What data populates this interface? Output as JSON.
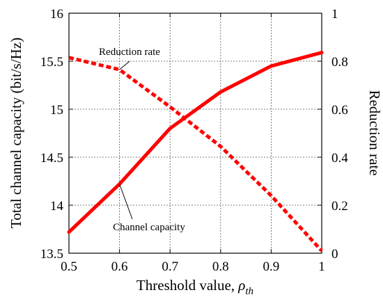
{
  "chart_data": {
    "type": "line",
    "title": "",
    "xlabel": "Threshold value, ",
    "xlabel_symbol": "ρ",
    "xlabel_subscript": "th",
    "ylabel_left": "Total channel capacity (bit/s/Hz)",
    "ylabel_right": "Reduction rate",
    "xlim": [
      0.5,
      1.0
    ],
    "ylim_left": [
      13.5,
      16
    ],
    "ylim_right": [
      0,
      1
    ],
    "grid": true,
    "x_ticks": [
      "0.5",
      "0.6",
      "0.7",
      "0.8",
      "0.9",
      "1"
    ],
    "y_left_ticks": [
      "13.5",
      "14",
      "14.5",
      "15",
      "15.5",
      "16"
    ],
    "y_right_ticks": [
      "0",
      "0.2",
      "0.4",
      "0.6",
      "0.8",
      "1"
    ],
    "x": [
      0.5,
      0.6,
      0.7,
      0.8,
      0.9,
      1.0
    ],
    "series": [
      {
        "name": "Channel capacity",
        "axis": "left",
        "style": "solid",
        "color": "#ff0000",
        "values": [
          13.72,
          14.22,
          14.8,
          15.18,
          15.45,
          15.59
        ]
      },
      {
        "name": "Reduction rate",
        "axis": "right",
        "style": "dashed",
        "color": "#ff0000",
        "values": [
          0.815,
          0.765,
          0.61,
          0.445,
          0.24,
          0.01
        ]
      }
    ],
    "annotations": [
      {
        "text": "Reduction rate",
        "series": "Reduction rate",
        "anchor_x": 0.6,
        "anchor_y": 0.765
      },
      {
        "text": "Channel capacity",
        "series": "Channel capacity",
        "anchor_x": 0.6,
        "anchor_y": 14.22
      }
    ]
  }
}
